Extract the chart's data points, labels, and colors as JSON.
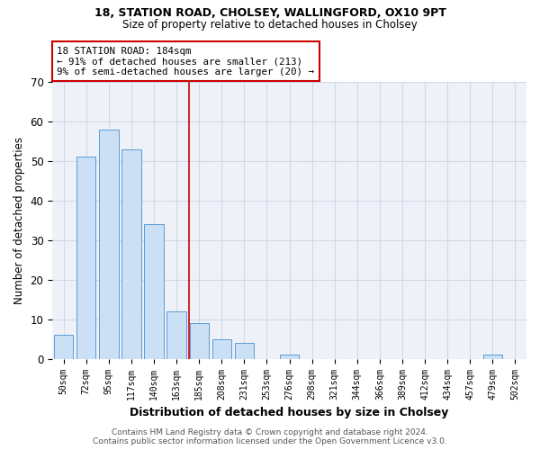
{
  "title_line1": "18, STATION ROAD, CHOLSEY, WALLINGFORD, OX10 9PT",
  "title_line2": "Size of property relative to detached houses in Cholsey",
  "xlabel": "Distribution of detached houses by size in Cholsey",
  "ylabel": "Number of detached properties",
  "categories": [
    "50sqm",
    "72sqm",
    "95sqm",
    "117sqm",
    "140sqm",
    "163sqm",
    "185sqm",
    "208sqm",
    "231sqm",
    "253sqm",
    "276sqm",
    "298sqm",
    "321sqm",
    "344sqm",
    "366sqm",
    "389sqm",
    "412sqm",
    "434sqm",
    "457sqm",
    "479sqm",
    "502sqm"
  ],
  "values": [
    6,
    51,
    58,
    53,
    34,
    12,
    9,
    5,
    4,
    0,
    1,
    0,
    0,
    0,
    0,
    0,
    0,
    0,
    0,
    1,
    0
  ],
  "bar_color": "#cce0f5",
  "bar_edge_color": "#5b9bd5",
  "vline_bin_index": 6,
  "vline_color": "#cc0000",
  "annotation_text": "18 STATION ROAD: 184sqm\n← 91% of detached houses are smaller (213)\n9% of semi-detached houses are larger (20) →",
  "annotation_box_color": "#ffffff",
  "annotation_box_edge": "#cc0000",
  "ylim": [
    0,
    70
  ],
  "yticks": [
    0,
    10,
    20,
    30,
    40,
    50,
    60,
    70
  ],
  "grid_color": "#d0d8e8",
  "background_color": "#eef2f8",
  "footer_line1": "Contains HM Land Registry data © Crown copyright and database right 2024.",
  "footer_line2": "Contains public sector information licensed under the Open Government Licence v3.0."
}
